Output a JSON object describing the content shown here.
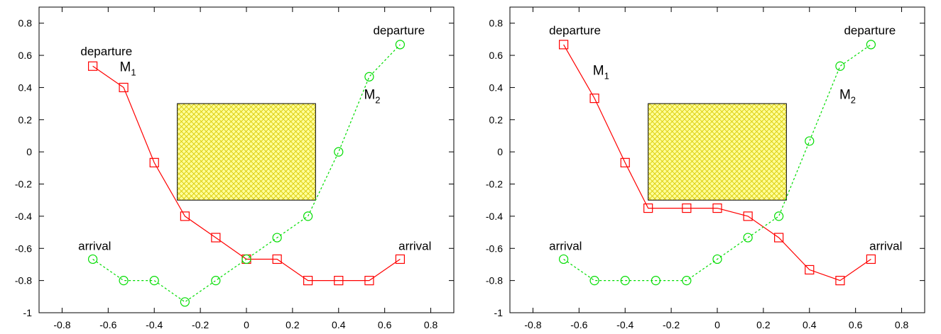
{
  "colors": {
    "m1": "#ff0000",
    "m2": "#00dd00",
    "obstacle_fill": "#ffff99",
    "obstacle_hatch": "#d8c800",
    "frame": "#000000"
  },
  "chart_data": [
    {
      "type": "line",
      "xlim": [
        -0.9,
        0.9
      ],
      "ylim": [
        -1,
        0.9
      ],
      "xticks": [
        -0.8,
        -0.6,
        -0.4,
        -0.2,
        0,
        0.2,
        0.4,
        0.6,
        0.8
      ],
      "yticks": [
        -1,
        -0.8,
        -0.6,
        -0.4,
        -0.2,
        0,
        0.2,
        0.4,
        0.6,
        0.8
      ],
      "xtick_labels": [
        "-0.8",
        "-0.6",
        "-0.4",
        "-0.2",
        "0",
        "0.2",
        "0.4",
        "0.6",
        "0.8"
      ],
      "ytick_labels": [
        "-1",
        "-0.8",
        "-0.6",
        "-0.4",
        "-0.2",
        "0",
        "0.2",
        "0.4",
        "0.6",
        "0.8"
      ],
      "obstacle": {
        "x": [
          -0.3,
          0.3
        ],
        "y": [
          -0.3,
          0.3
        ]
      },
      "series": [
        {
          "name": "M1",
          "label": "M",
          "label_sub": "1",
          "label_at": [
            -0.55,
            0.5
          ],
          "line": "solid",
          "marker": "square",
          "color": "#ff0000",
          "x": [
            -0.667,
            -0.533,
            -0.4,
            -0.267,
            -0.133,
            0,
            0.133,
            0.267,
            0.4,
            0.533,
            0.667
          ],
          "y": [
            0.533,
            0.4,
            -0.067,
            -0.4,
            -0.533,
            -0.667,
            -0.667,
            -0.8,
            -0.8,
            -0.8,
            -0.667
          ]
        },
        {
          "name": "M2",
          "label": "M",
          "label_sub": "2",
          "label_at": [
            0.51,
            0.33
          ],
          "line": "dashed",
          "marker": "circle",
          "color": "#00dd00",
          "x": [
            -0.667,
            -0.533,
            -0.4,
            -0.267,
            -0.133,
            0,
            0.133,
            0.267,
            0.4,
            0.533,
            0.667
          ],
          "y": [
            -0.667,
            -0.8,
            -0.8,
            -0.933,
            -0.8,
            -0.667,
            -0.533,
            -0.4,
            0,
            0.467,
            0.667
          ]
        }
      ],
      "annotations": [
        {
          "text": "departure",
          "at": [
            -0.72,
            0.6
          ]
        },
        {
          "text": "departure",
          "at": [
            0.55,
            0.73
          ]
        },
        {
          "text": "arrival",
          "at": [
            -0.73,
            -0.61
          ]
        },
        {
          "text": "arrival",
          "at": [
            0.66,
            -0.61
          ]
        }
      ]
    },
    {
      "type": "line",
      "xlim": [
        -0.9,
        0.9
      ],
      "ylim": [
        -1,
        0.9
      ],
      "xticks": [
        -0.8,
        -0.6,
        -0.4,
        -0.2,
        0,
        0.2,
        0.4,
        0.6,
        0.8
      ],
      "yticks": [
        -1,
        -0.8,
        -0.6,
        -0.4,
        -0.2,
        0,
        0.2,
        0.4,
        0.6,
        0.8
      ],
      "xtick_labels": [
        "-0.8",
        "-0.6",
        "-0.4",
        "-0.2",
        "0",
        "0.2",
        "0.4",
        "0.6",
        "0.8"
      ],
      "ytick_labels": [
        "-1",
        "-0.8",
        "-0.6",
        "-0.4",
        "-0.2",
        "0",
        "0.2",
        "0.4",
        "0.6",
        "0.8"
      ],
      "obstacle": {
        "x": [
          -0.3,
          0.3
        ],
        "y": [
          -0.3,
          0.3
        ]
      },
      "series": [
        {
          "name": "M1",
          "label": "M",
          "label_sub": "1",
          "label_at": [
            -0.54,
            0.48
          ],
          "line": "solid",
          "marker": "square",
          "color": "#ff0000",
          "x": [
            -0.667,
            -0.533,
            -0.4,
            -0.3,
            -0.133,
            0,
            0.133,
            0.267,
            0.4,
            0.533,
            0.667
          ],
          "y": [
            0.667,
            0.333,
            -0.067,
            -0.35,
            -0.35,
            -0.35,
            -0.4,
            -0.533,
            -0.733,
            -0.8,
            -0.667
          ]
        },
        {
          "name": "M2",
          "label": "M",
          "label_sub": "2",
          "label_at": [
            0.53,
            0.33
          ],
          "line": "dashed",
          "marker": "circle",
          "color": "#00dd00",
          "x": [
            -0.667,
            -0.533,
            -0.4,
            -0.267,
            -0.133,
            0,
            0.133,
            0.267,
            0.4,
            0.533,
            0.667
          ],
          "y": [
            -0.667,
            -0.8,
            -0.8,
            -0.8,
            -0.8,
            -0.667,
            -0.533,
            -0.4,
            0.067,
            0.533,
            0.667
          ]
        }
      ],
      "annotations": [
        {
          "text": "departure",
          "at": [
            -0.73,
            0.73
          ]
        },
        {
          "text": "departure",
          "at": [
            0.55,
            0.73
          ]
        },
        {
          "text": "arrival",
          "at": [
            -0.73,
            -0.61
          ]
        },
        {
          "text": "arrival",
          "at": [
            0.66,
            -0.61
          ]
        }
      ]
    }
  ]
}
